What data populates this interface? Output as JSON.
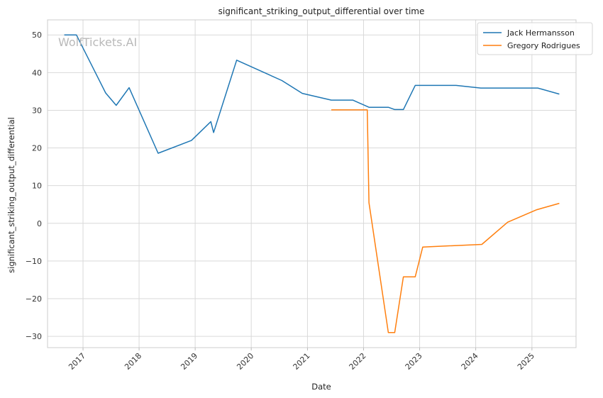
{
  "chart_data": {
    "type": "line",
    "title": "significant_striking_output_differential over time",
    "xlabel": "Date",
    "ylabel": "significant_striking_output_differential",
    "watermark": "WolfTickets.AI",
    "x_ticks": [
      "2017",
      "2018",
      "2019",
      "2020",
      "2021",
      "2022",
      "2023",
      "2024",
      "2025"
    ],
    "y_ticks": [
      -30,
      -20,
      -10,
      0,
      10,
      20,
      30,
      40,
      50
    ],
    "xlim": [
      "2016-05-15",
      "2025-10-15"
    ],
    "ylim": [
      -33,
      54
    ],
    "grid": true,
    "legend_position": "top-right",
    "colors": {
      "Jack Hermansson": "#1f77b4",
      "Gregory Rodrigues": "#ff7f0e"
    },
    "series": [
      {
        "name": "Jack Hermansson",
        "x": [
          "2016-09-01",
          "2016-11-19",
          "2017-05-28",
          "2017-08-05",
          "2017-10-28",
          "2018-05-05",
          "2018-12-08",
          "2019-04-13",
          "2019-05-01",
          "2019-09-28",
          "2020-07-18",
          "2020-11-28",
          "2021-06-05",
          "2021-10-23",
          "2022-02-05",
          "2022-06-11",
          "2022-07-23",
          "2022-09-17",
          "2022-12-03",
          "2023-08-26",
          "2024-02-03",
          "2025-02-08",
          "2025-06-28"
        ],
        "values": [
          50,
          50,
          34.6,
          31.3,
          36,
          18.6,
          22,
          27,
          24.1,
          43.3,
          37.9,
          34.5,
          32.7,
          32.7,
          30.8,
          30.8,
          30.2,
          30.2,
          36.6,
          36.6,
          35.9,
          35.9,
          34.3
        ]
      },
      {
        "name": "Gregory Rodrigues",
        "x": [
          "2021-06-05",
          "2022-01-25",
          "2022-02-05",
          "2022-06-11",
          "2022-07-23",
          "2022-09-17",
          "2022-12-03",
          "2023-01-21",
          "2024-02-10",
          "2024-07-27",
          "2025-02-01",
          "2025-06-28"
        ],
        "values": [
          30.1,
          30.1,
          5.5,
          -29,
          -29,
          -14.2,
          -14.2,
          -6.3,
          -5.6,
          0.3,
          3.6,
          5.3
        ]
      }
    ]
  }
}
